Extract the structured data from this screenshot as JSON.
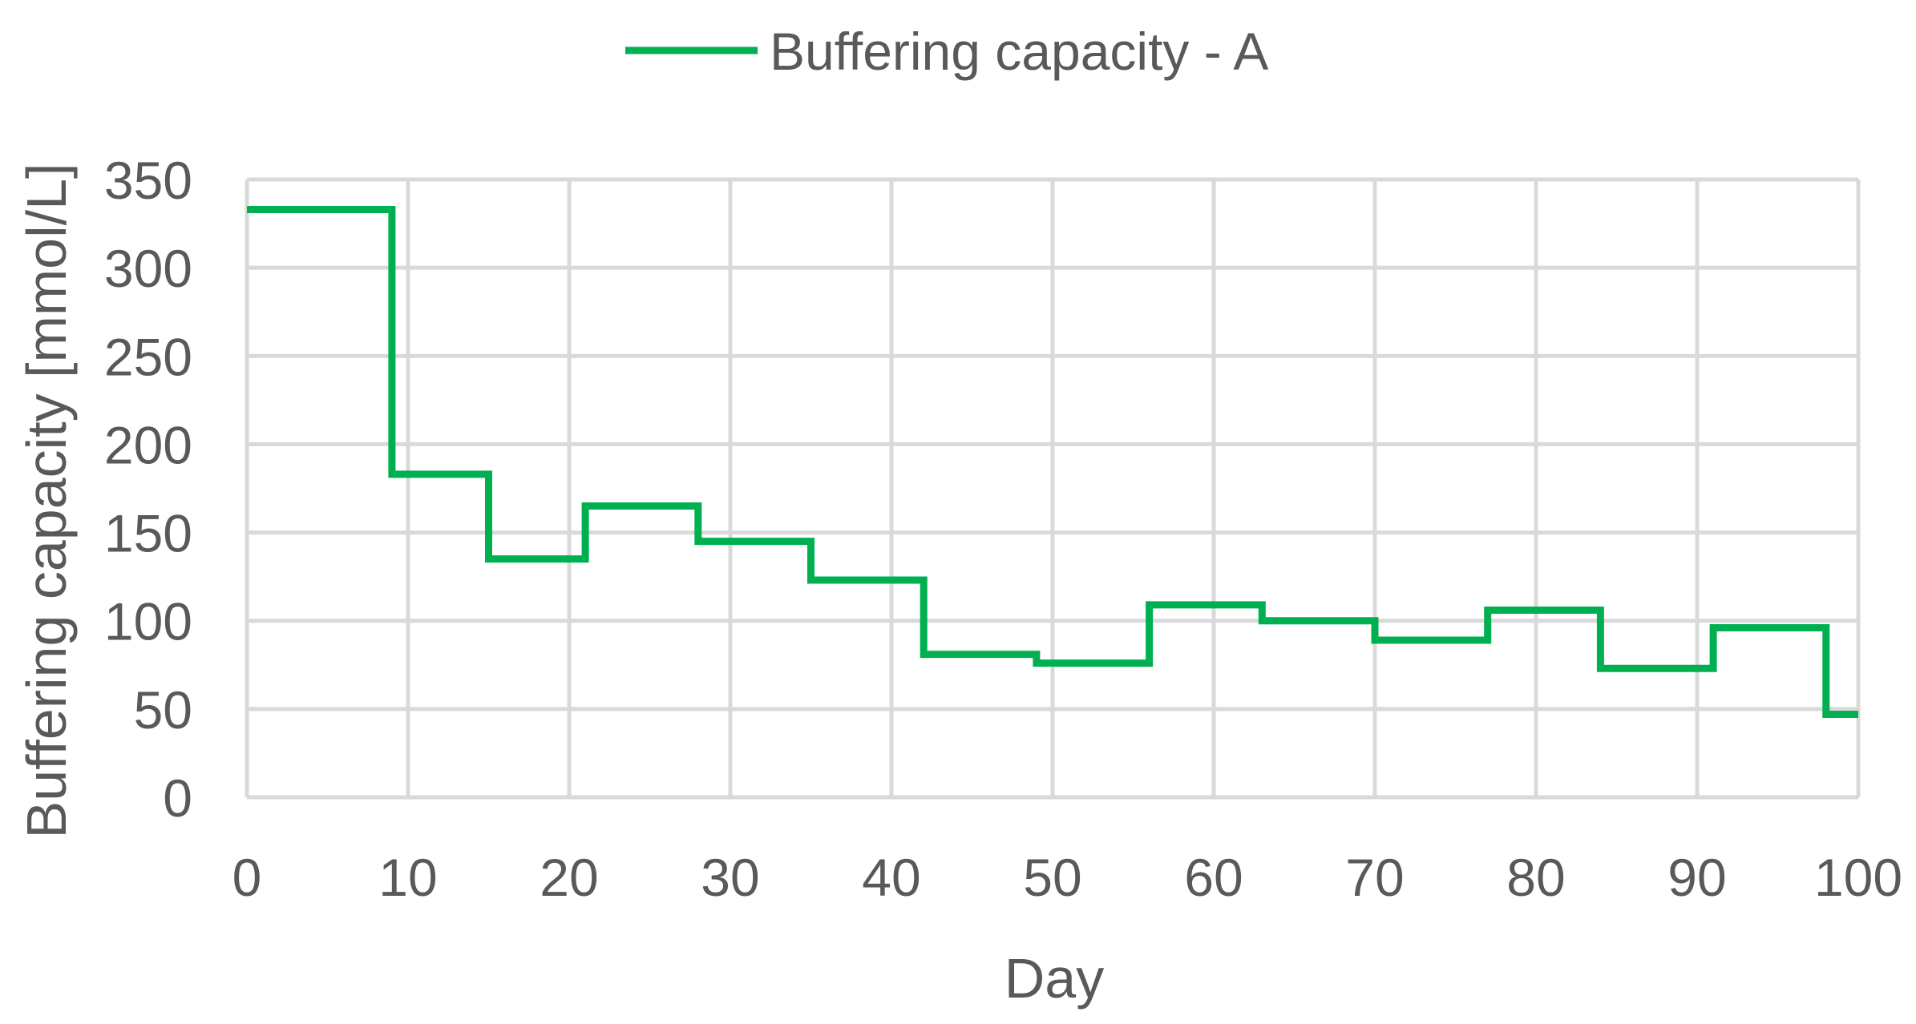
{
  "chart_data": {
    "type": "line",
    "step": true,
    "xlabel": "Day",
    "ylabel": "Buffering capacity [mmol/L]",
    "xlim": [
      0,
      100
    ],
    "ylim": [
      0,
      350
    ],
    "xticks": [
      0,
      10,
      20,
      30,
      40,
      50,
      60,
      70,
      80,
      90,
      100
    ],
    "yticks": [
      0,
      50,
      100,
      150,
      200,
      250,
      300,
      350
    ],
    "grid": true,
    "legend_position": "top-center",
    "series": [
      {
        "name": "Buffering capacity - A",
        "color": "#00b050",
        "points": [
          {
            "x": 0,
            "y": 333
          },
          {
            "x": 9,
            "y": 183
          },
          {
            "x": 15,
            "y": 135
          },
          {
            "x": 21,
            "y": 165
          },
          {
            "x": 28,
            "y": 145
          },
          {
            "x": 35,
            "y": 123
          },
          {
            "x": 42,
            "y": 81
          },
          {
            "x": 49,
            "y": 76
          },
          {
            "x": 56,
            "y": 109
          },
          {
            "x": 63,
            "y": 100
          },
          {
            "x": 70,
            "y": 89
          },
          {
            "x": 77,
            "y": 106
          },
          {
            "x": 84,
            "y": 73
          },
          {
            "x": 91,
            "y": 96
          },
          {
            "x": 98,
            "y": 47
          },
          {
            "x": 100,
            "y": 47
          }
        ]
      }
    ]
  }
}
